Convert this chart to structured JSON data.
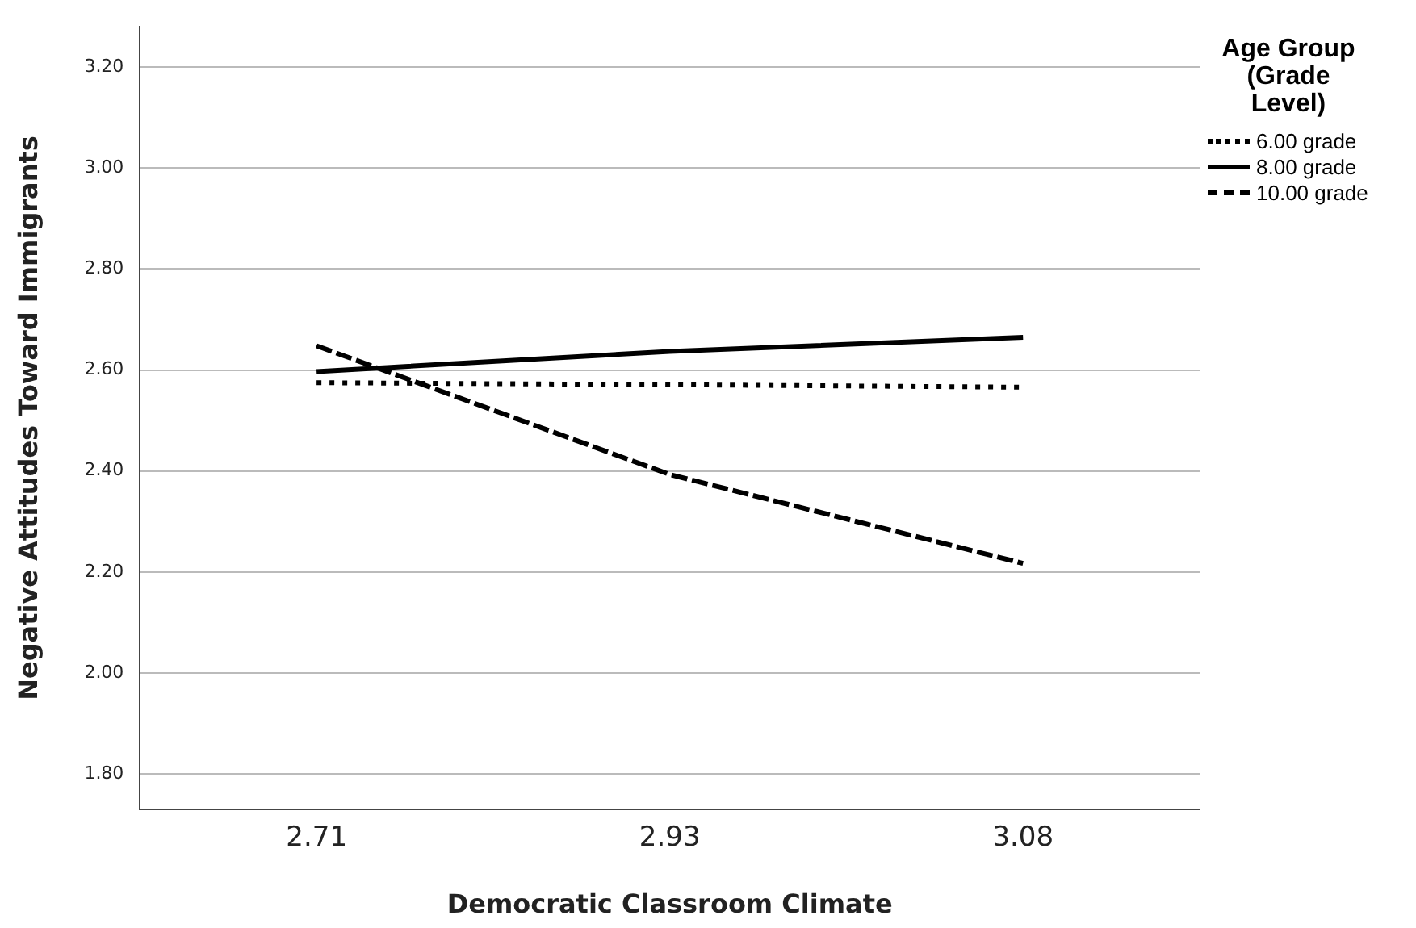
{
  "chart_data": {
    "type": "line",
    "xlabel": "Democratic Classroom Climate",
    "ylabel": "Negative Attitudes Toward Immigrants",
    "legend_title": "Age Group (Grade Level)",
    "categories": [
      "2.71",
      "2.93",
      "3.08"
    ],
    "series": [
      {
        "name": "6.00 grade",
        "color": "#000000",
        "line_style": "dotted",
        "values": [
          2.575,
          2.571,
          2.566
        ]
      },
      {
        "name": "8.00 grade",
        "color": "#000000",
        "line_style": "solid",
        "values": [
          2.597,
          2.637,
          2.665
        ]
      },
      {
        "name": "10.00 grade",
        "color": "#000000",
        "line_style": "dashed",
        "values": [
          2.648,
          2.393,
          2.217
        ]
      }
    ],
    "ylim": [
      1.73,
      3.28
    ],
    "yticks": [
      {
        "value": 1.8,
        "label": "1.80"
      },
      {
        "value": 2.0,
        "label": "2.00"
      },
      {
        "value": 2.2,
        "label": "2.20"
      },
      {
        "value": 2.4,
        "label": "2.40"
      },
      {
        "value": 2.6,
        "label": "2.60"
      },
      {
        "value": 2.8,
        "label": "2.80"
      },
      {
        "value": 3.0,
        "label": "3.00"
      },
      {
        "value": 3.2,
        "label": "3.20"
      }
    ],
    "grid": "y",
    "legend": "top right",
    "marker": "none"
  }
}
